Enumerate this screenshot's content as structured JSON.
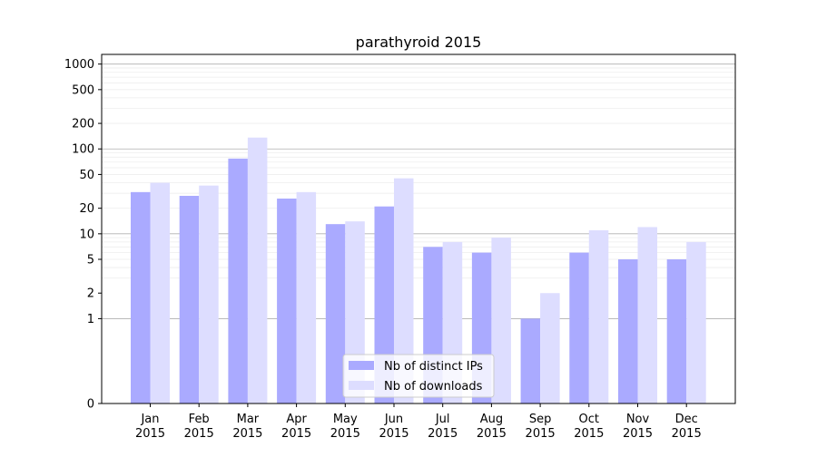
{
  "chart_data": {
    "type": "bar",
    "title": "parathyroid 2015",
    "xlabel": "",
    "ylabel": "",
    "y_scale": "symlog",
    "y_ticks": [
      0,
      1,
      2,
      5,
      10,
      20,
      50,
      100,
      200,
      500,
      1000
    ],
    "y_tick_labels": [
      "0",
      "1",
      "2",
      "5",
      "10",
      "20",
      "50",
      "100",
      "200",
      "500",
      "1000"
    ],
    "ylim": [
      0,
      1300
    ],
    "grid": true,
    "legend_position": "bottom-center",
    "categories": [
      "Jan\n2015",
      "Feb\n2015",
      "Mar\n2015",
      "Apr\n2015",
      "May\n2015",
      "Jun\n2015",
      "Jul\n2015",
      "Aug\n2015",
      "Sep\n2015",
      "Oct\n2015",
      "Nov\n2015",
      "Dec\n2015"
    ],
    "series": [
      {
        "name": "Nb of distinct IPs",
        "color": "#aaaaff",
        "values": [
          31,
          28,
          77,
          26,
          13,
          21,
          7,
          6,
          1,
          6,
          5,
          5
        ]
      },
      {
        "name": "Nb of downloads",
        "color": "#ddddff",
        "values": [
          40,
          37,
          136,
          31,
          14,
          45,
          8,
          9,
          2,
          11,
          12,
          8
        ]
      }
    ]
  }
}
